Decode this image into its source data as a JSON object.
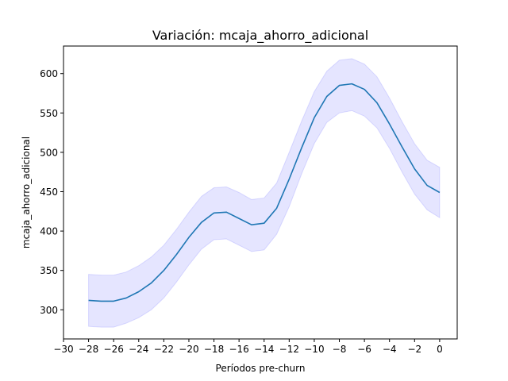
{
  "chart_data": {
    "type": "line",
    "title": "Variación: mcaja_ahorro_adicional",
    "xlabel": "Períodos pre-churn",
    "ylabel": "mcaja_ahorro_adicional",
    "xlim": [
      -30,
      1.4
    ],
    "ylim": [
      263,
      635
    ],
    "xticks": [
      -30,
      -28,
      -26,
      -24,
      -22,
      -20,
      -18,
      -16,
      -14,
      -12,
      -10,
      -8,
      -6,
      -4,
      -2,
      0
    ],
    "xtick_labels": [
      "−30",
      "−28",
      "−26",
      "−24",
      "−22",
      "−20",
      "−18",
      "−16",
      "−14",
      "−12",
      "−10",
      "−8",
      "−6",
      "−4",
      "−2",
      "0"
    ],
    "yticks": [
      300,
      350,
      400,
      450,
      500,
      550,
      600
    ],
    "ytick_labels": [
      "300",
      "350",
      "400",
      "450",
      "500",
      "550",
      "600"
    ],
    "grid": false,
    "colors": {
      "line": "#1f77b4",
      "band": "#0000ff"
    },
    "series": [
      {
        "x": [
          -28,
          -27,
          -26,
          -25,
          -24,
          -23,
          -22,
          -21,
          -20,
          -19,
          -18,
          -17,
          -16,
          -15,
          -14,
          -13,
          -12,
          -11,
          -10,
          -9,
          -8,
          -7,
          -6,
          -5,
          -4,
          -3,
          -2,
          -1,
          0
        ],
        "values": [
          312,
          311,
          311,
          315,
          323,
          334,
          350,
          370,
          392,
          411,
          423,
          424,
          416,
          408,
          410,
          429,
          466,
          506,
          544,
          571,
          585,
          587,
          580,
          563,
          536,
          507,
          479,
          458,
          449
        ],
        "lower": [
          279,
          278,
          278,
          283,
          290,
          300,
          315,
          335,
          357,
          377,
          389,
          390,
          382,
          374,
          376,
          396,
          431,
          473,
          511,
          538,
          550,
          553,
          546,
          531,
          505,
          475,
          447,
          427,
          417
        ],
        "upper": [
          345,
          344,
          344,
          348,
          356,
          367,
          382,
          402,
          424,
          444,
          455,
          456,
          449,
          440,
          442,
          461,
          500,
          540,
          577,
          603,
          617,
          619,
          612,
          596,
          569,
          539,
          511,
          490,
          481
        ]
      }
    ]
  }
}
